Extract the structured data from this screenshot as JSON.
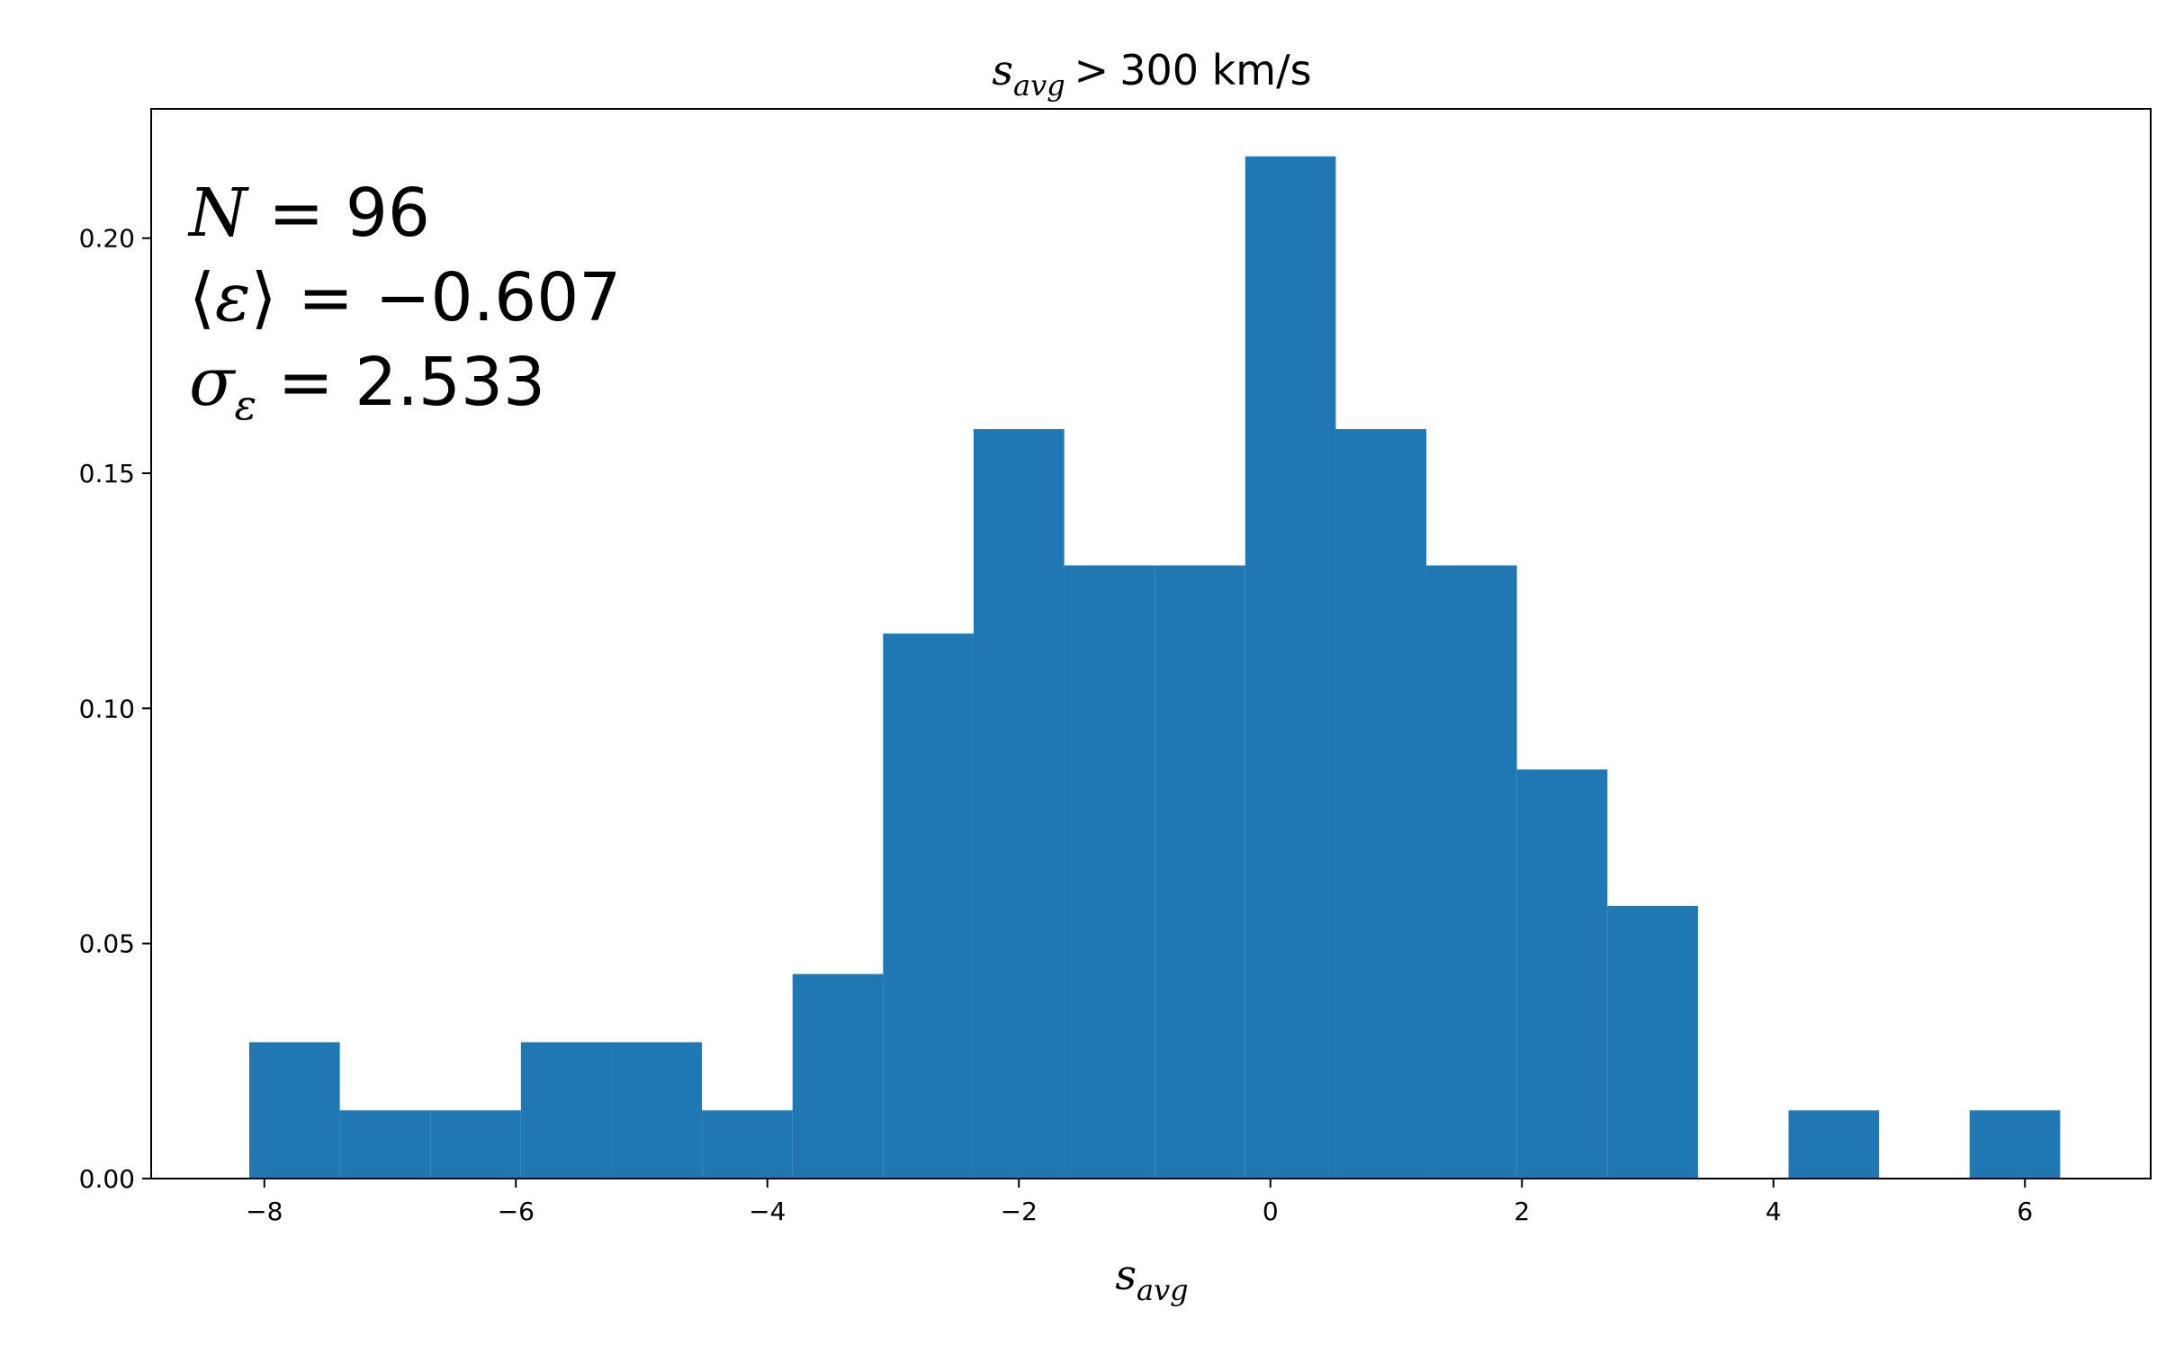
{
  "chart_data": {
    "type": "bar",
    "title": {
      "sym": "s",
      "sub": "avg",
      "op": ">",
      "rest": "300 km/s"
    },
    "xlabel": {
      "sym": "s",
      "sub": "avg"
    },
    "ylabel": "",
    "xlim": [
      -8.9,
      7.0
    ],
    "ylim": [
      0.0,
      0.2275
    ],
    "x_ticks": [
      -8,
      -6,
      -4,
      -2,
      0,
      2,
      4,
      6
    ],
    "x_tick_labels": [
      "−8",
      "−6",
      "−4",
      "−2",
      "0",
      "2",
      "4",
      "6"
    ],
    "y_ticks": [
      0.0,
      0.05,
      0.1,
      0.15,
      0.2
    ],
    "y_tick_labels": [
      "0.00",
      "0.05",
      "0.10",
      "0.15",
      "0.20"
    ],
    "grid": false,
    "legend": "none",
    "bar_color": "#1f77b4",
    "bin_edges": [
      -8.12,
      -7.4,
      -6.68,
      -5.96,
      -5.24,
      -4.52,
      -3.8,
      -3.08,
      -2.36,
      -1.64,
      -0.92,
      -0.2,
      0.52,
      1.24,
      1.96,
      2.68,
      3.4,
      4.12,
      4.84,
      5.56,
      6.28
    ],
    "values": [
      0.029,
      0.0145,
      0.0145,
      0.029,
      0.029,
      0.0145,
      0.0435,
      0.1159,
      0.1594,
      0.1304,
      0.1304,
      0.2174,
      0.1594,
      0.1304,
      0.087,
      0.058,
      0.0,
      0.0145,
      0.0,
      0.0145
    ],
    "annotations": {
      "n_line": {
        "sym": "N",
        "eq": " = ",
        "val": "96"
      },
      "mean_line": {
        "open": "⟨",
        "sym": "ε",
        "close": "⟩",
        "eq": " = ",
        "val": "−0.607"
      },
      "sigma_line": {
        "sym": "σ",
        "sub": "ε",
        "eq": " = ",
        "val": "2.533"
      }
    }
  }
}
